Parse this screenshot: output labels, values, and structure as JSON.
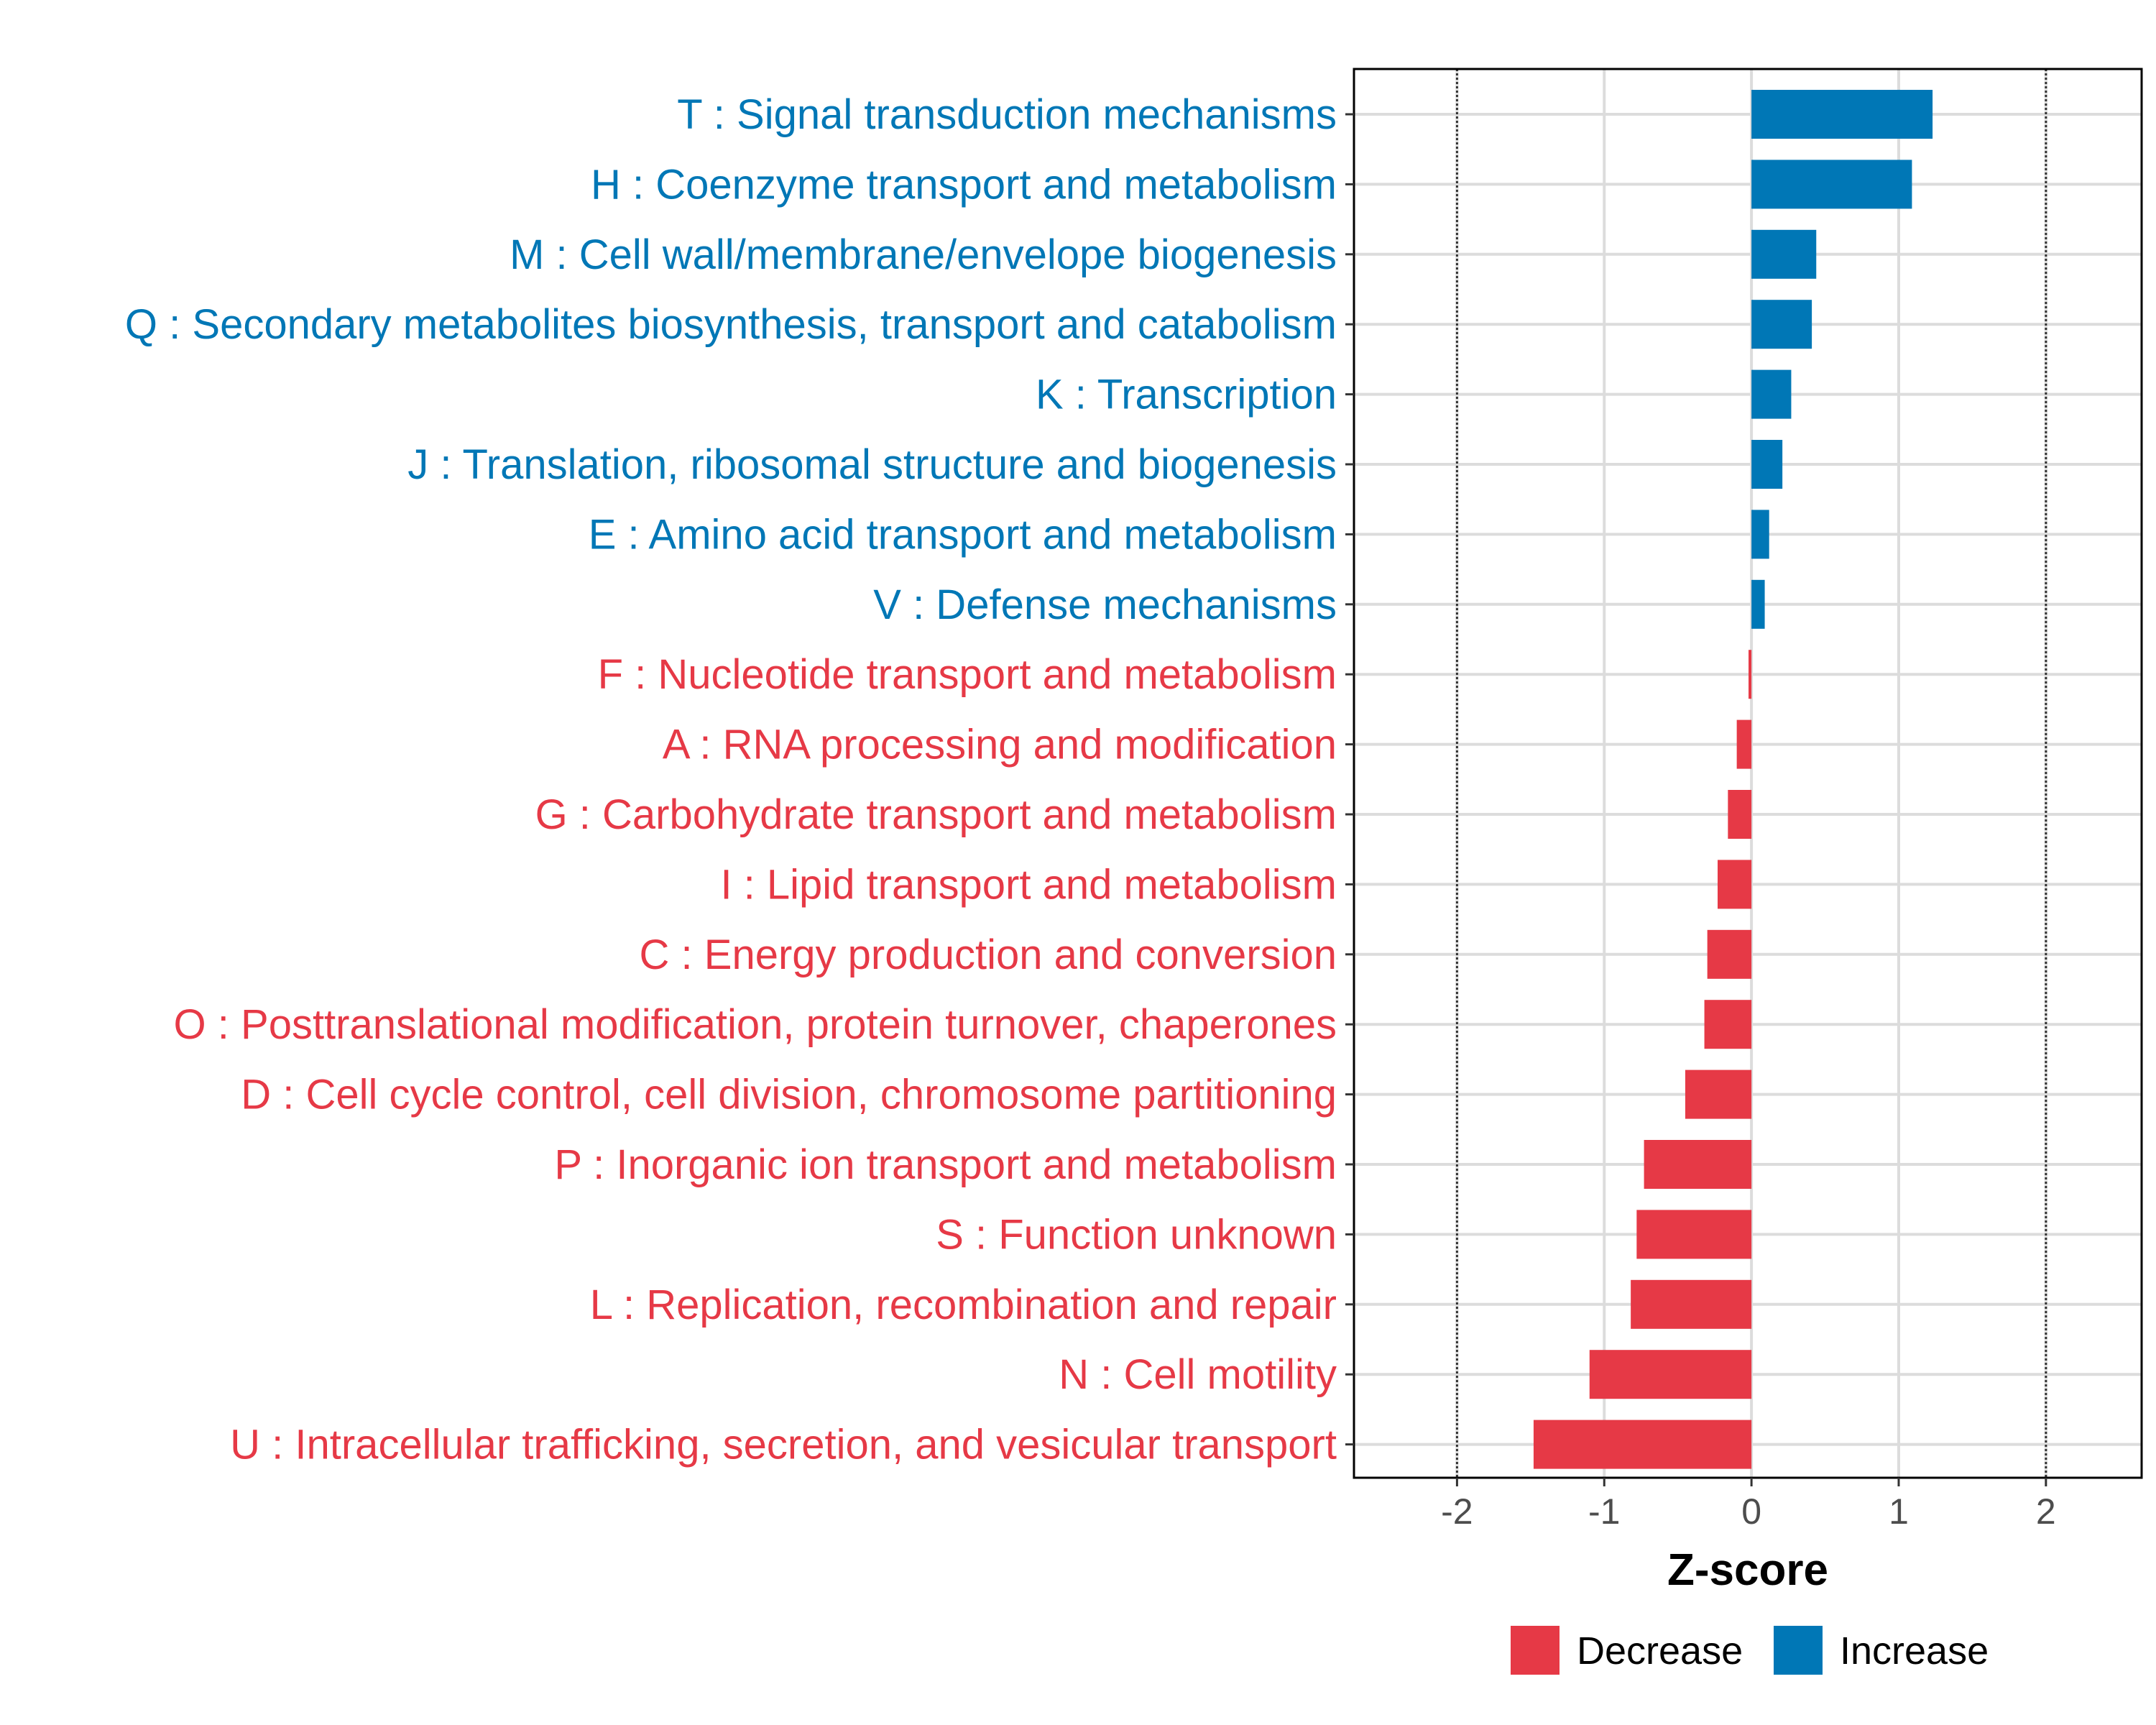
{
  "chart_data": {
    "type": "bar",
    "orientation": "horizontal",
    "xlabel": "Z-score",
    "ylabel": "",
    "xlim": [
      -2.7,
      2.65
    ],
    "xticks": [
      -2,
      -1,
      0,
      1,
      2
    ],
    "xtick_labels": [
      "-2",
      "-1",
      "0",
      "1",
      "2"
    ],
    "reference_lines": [
      -2,
      2
    ],
    "grid": true,
    "legend": {
      "position": "bottom-right",
      "entries": [
        {
          "label": "Decrease",
          "color": "#e63946"
        },
        {
          "label": "Increase",
          "color": "#0077b6"
        }
      ]
    },
    "categories": [
      "T : Signal transduction mechanisms",
      "H : Coenzyme transport and metabolism",
      "M : Cell wall/membrane/envelope biogenesis",
      "Q : Secondary metabolites biosynthesis, transport and catabolism",
      "K : Transcription",
      "J : Translation, ribosomal structure and biogenesis",
      "E : Amino acid transport and metabolism",
      "V : Defense mechanisms",
      "F : Nucleotide transport and metabolism",
      "A : RNA processing and modification",
      "G : Carbohydrate transport and metabolism",
      "I : Lipid transport and metabolism",
      "C : Energy production and conversion",
      "O : Posttranslational modification, protein turnover, chaperones",
      "D : Cell cycle control, cell division, chromosome partitioning",
      "P : Inorganic ion transport and metabolism",
      "S : Function unknown",
      "L : Replication, recombination and repair",
      "N : Cell motility",
      "U : Intracellular trafficking, secretion, and vesicular transport"
    ],
    "values": [
      1.23,
      1.09,
      0.44,
      0.41,
      0.27,
      0.21,
      0.12,
      0.09,
      -0.02,
      -0.1,
      -0.16,
      -0.23,
      -0.3,
      -0.32,
      -0.45,
      -0.73,
      -0.78,
      -0.82,
      -1.1,
      -1.48
    ],
    "groups": [
      "Increase",
      "Increase",
      "Increase",
      "Increase",
      "Increase",
      "Increase",
      "Increase",
      "Increase",
      "Decrease",
      "Decrease",
      "Decrease",
      "Decrease",
      "Decrease",
      "Decrease",
      "Decrease",
      "Decrease",
      "Decrease",
      "Decrease",
      "Decrease",
      "Decrease"
    ]
  }
}
